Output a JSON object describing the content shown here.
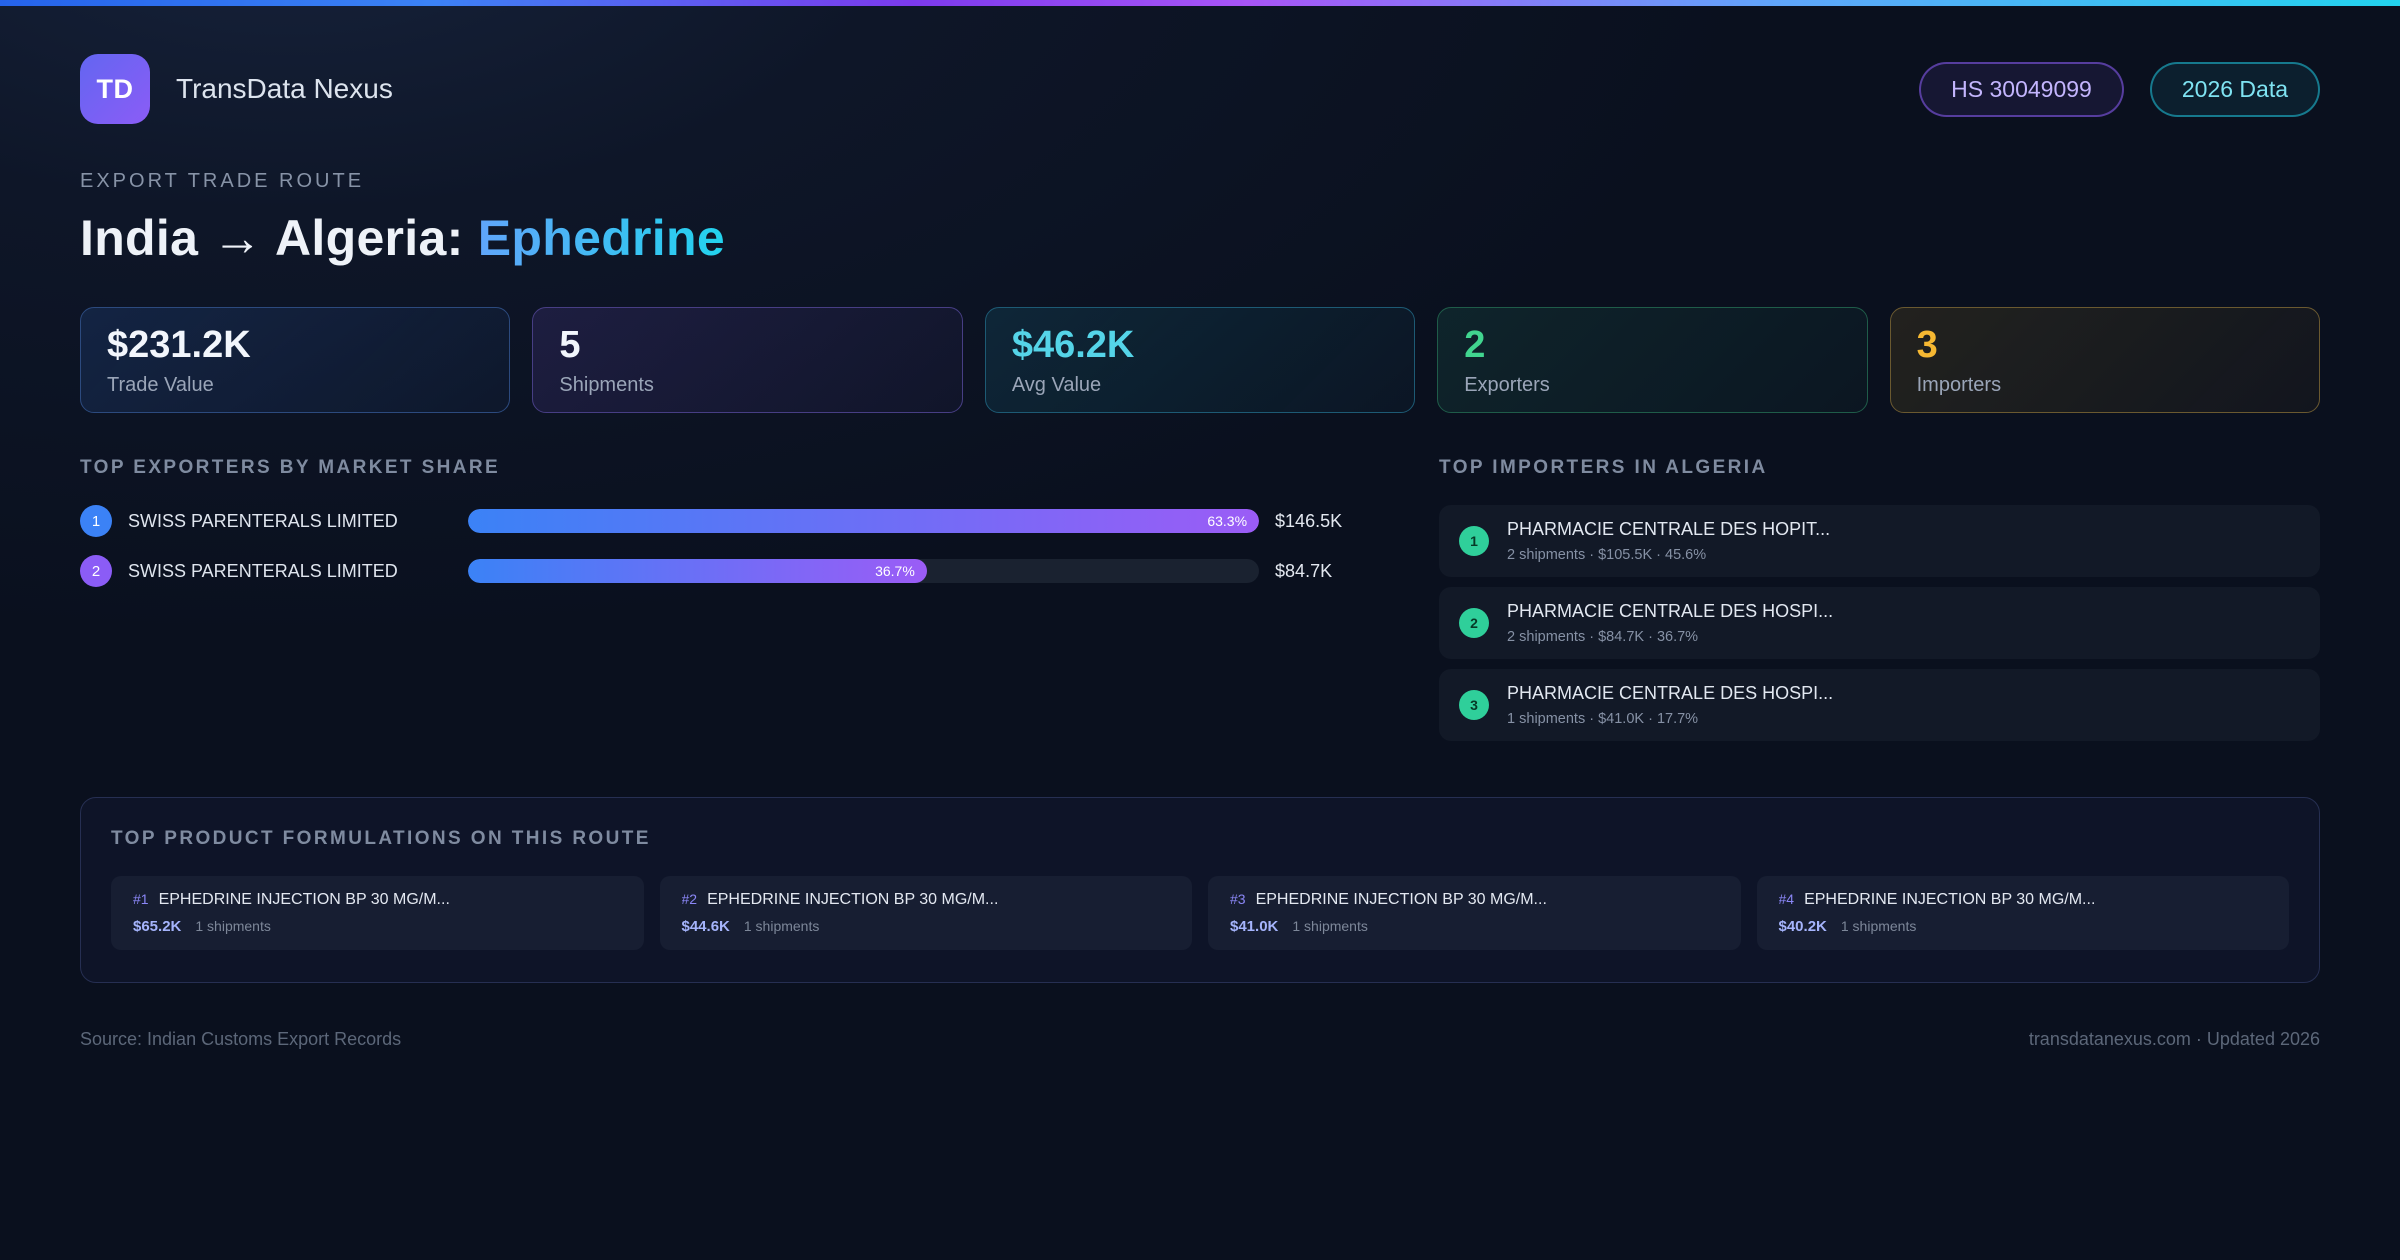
{
  "header": {
    "logo_text": "TD",
    "app_name": "TransData Nexus",
    "hs_badge": "HS 30049099",
    "year_badge": "2026 Data"
  },
  "title": {
    "eyebrow": "EXPORT TRADE ROUTE",
    "route": "India → Algeria:",
    "product": "Ephedrine"
  },
  "stats": [
    {
      "value": "$231.2K",
      "label": "Trade Value"
    },
    {
      "value": "5",
      "label": "Shipments"
    },
    {
      "value": "$46.2K",
      "label": "Avg Value"
    },
    {
      "value": "2",
      "label": "Exporters"
    },
    {
      "value": "3",
      "label": "Importers"
    }
  ],
  "exporters": {
    "section_title": "TOP EXPORTERS BY MARKET SHARE",
    "rows": [
      {
        "rank": "1",
        "name": "SWISS PARENTERALS LIMITED",
        "share_label": "63.3%",
        "share_pct": 63.3,
        "value": "$146.5K"
      },
      {
        "rank": "2",
        "name": "SWISS PARENTERALS LIMITED",
        "share_label": "36.7%",
        "share_pct": 36.7,
        "value": "$84.7K"
      }
    ]
  },
  "importers": {
    "section_title": "TOP IMPORTERS IN ALGERIA",
    "rows": [
      {
        "rank": "1",
        "name": "PHARMACIE CENTRALE DES HOPIT...",
        "meta": "2 shipments · $105.5K · 45.6%"
      },
      {
        "rank": "2",
        "name": "PHARMACIE CENTRALE DES HOSPI...",
        "meta": "2 shipments · $84.7K · 36.7%"
      },
      {
        "rank": "3",
        "name": "PHARMACIE CENTRALE DES HOSPI...",
        "meta": "1 shipments · $41.0K · 17.7%"
      }
    ]
  },
  "products": {
    "section_title": "TOP PRODUCT FORMULATIONS ON THIS ROUTE",
    "cards": [
      {
        "rank": "#1",
        "name": "EPHEDRINE INJECTION BP 30 MG/M...",
        "value": "$65.2K",
        "shipments": "1 shipments"
      },
      {
        "rank": "#2",
        "name": "EPHEDRINE INJECTION BP 30 MG/M...",
        "value": "$44.6K",
        "shipments": "1 shipments"
      },
      {
        "rank": "#3",
        "name": "EPHEDRINE INJECTION BP 30 MG/M...",
        "value": "$41.0K",
        "shipments": "1 shipments"
      },
      {
        "rank": "#4",
        "name": "EPHEDRINE INJECTION BP 30 MG/M...",
        "value": "$40.2K",
        "shipments": "1 shipments"
      }
    ]
  },
  "footer": {
    "source": "Source: Indian Customs Export Records",
    "site": "transdatanexus.com · Updated 2026"
  },
  "colors": {
    "accent_blue": "#3b82f6",
    "accent_purple": "#a855f7",
    "accent_cyan": "#22d3ee",
    "accent_green": "#34d399",
    "accent_amber": "#fbbf24",
    "background": "#0e1628"
  }
}
